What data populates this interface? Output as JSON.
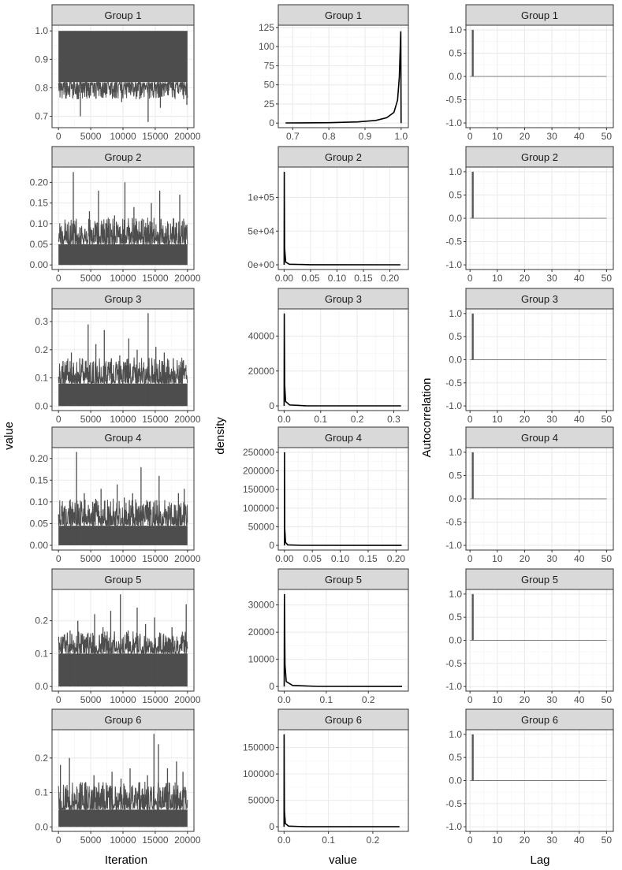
{
  "x_labels": {
    "trace": "Iteration",
    "density": "value",
    "acf": "Lag"
  },
  "y_labels": {
    "trace": "value",
    "density": "density",
    "acf": "Autocorrelation"
  },
  "groups": [
    "Group 1",
    "Group 2",
    "Group 3",
    "Group 4",
    "Group 5",
    "Group 6"
  ],
  "colors": {
    "strip": "#d9d9d9",
    "strip_border": "#333333",
    "panel_border": "#333333",
    "grid_major": "#ebebeb",
    "grid_minor": "#f4f4f4",
    "trace": "#4d4d4d",
    "density": "#000000",
    "acf": "#595959"
  },
  "chart_data": [
    {
      "type": "line",
      "panel": "trace",
      "title": "Group 1",
      "xlim": [
        -1000,
        21000
      ],
      "ylim": [
        0.66,
        1.02
      ],
      "xticks": [
        0,
        5000,
        10000,
        15000,
        20000
      ],
      "xtick_labels": [
        "0",
        "5000",
        "10000",
        "15000",
        "20000"
      ],
      "yticks": [
        0.7,
        0.8,
        0.9,
        1.0
      ],
      "ytick_labels": [
        "0.7",
        "0.8",
        "0.9",
        "1.0"
      ],
      "range": [
        0.82,
        1.0
      ],
      "n_iterations": 20000,
      "spikes": [
        [
          1200,
          0.78
        ],
        [
          2900,
          0.76
        ],
        [
          3400,
          0.7
        ],
        [
          4300,
          0.8
        ],
        [
          6100,
          0.79
        ],
        [
          8300,
          0.78
        ],
        [
          9800,
          0.75
        ],
        [
          12600,
          0.76
        ],
        [
          13900,
          0.68
        ],
        [
          15800,
          0.73
        ],
        [
          17100,
          0.79
        ],
        [
          19900,
          0.74
        ]
      ]
    },
    {
      "type": "line",
      "panel": "density",
      "title": "Group 1",
      "xlim": [
        0.66,
        1.02
      ],
      "ylim": [
        -6,
        128
      ],
      "xticks": [
        0.7,
        0.8,
        0.9,
        1.0
      ],
      "xtick_labels": [
        "0.7",
        "0.8",
        "0.9",
        "1.0"
      ],
      "yticks": [
        0,
        25,
        50,
        75,
        100,
        125
      ],
      "ytick_labels": [
        "0",
        "25",
        "50",
        "75",
        "100",
        "125"
      ],
      "x": [
        0.68,
        0.8,
        0.88,
        0.93,
        0.96,
        0.98,
        0.99,
        0.995,
        0.999,
        1.0
      ],
      "y": [
        0.2,
        0.5,
        1.5,
        3.5,
        7,
        14,
        30,
        60,
        120,
        0
      ]
    },
    {
      "type": "acf",
      "panel": "acf",
      "title": "Group 1",
      "xlim": [
        -1.5,
        52.5
      ],
      "ylim": [
        -1.1,
        1.1
      ],
      "xticks": [
        0,
        10,
        20,
        30,
        40,
        50
      ],
      "xtick_labels": [
        "0",
        "10",
        "20",
        "30",
        "40",
        "50"
      ],
      "yticks": [
        -1.0,
        -0.5,
        0.0,
        0.5,
        1.0
      ],
      "ytick_labels": [
        "-1.0",
        "-0.5",
        "0.0",
        "0.5",
        "1.0"
      ],
      "lag1": 1.0,
      "noise": 0.008
    },
    {
      "type": "line",
      "panel": "trace",
      "title": "Group 2",
      "xlim": [
        -1000,
        21000
      ],
      "ylim": [
        -0.011,
        0.237
      ],
      "xticks": [
        0,
        5000,
        10000,
        15000,
        20000
      ],
      "xtick_labels": [
        "0",
        "5000",
        "10000",
        "15000",
        "20000"
      ],
      "yticks": [
        0.0,
        0.05,
        0.1,
        0.15,
        0.2
      ],
      "ytick_labels": [
        "0.00",
        "0.05",
        "0.10",
        "0.15",
        "0.20"
      ],
      "range": [
        0.0,
        0.05
      ],
      "n_iterations": 20000,
      "spikes": [
        [
          500,
          0.07
        ],
        [
          1900,
          0.08
        ],
        [
          2300,
          0.225
        ],
        [
          3500,
          0.09
        ],
        [
          4800,
          0.13
        ],
        [
          6200,
          0.18
        ],
        [
          7400,
          0.1
        ],
        [
          8700,
          0.12
        ],
        [
          10300,
          0.2
        ],
        [
          11700,
          0.14
        ],
        [
          13200,
          0.11
        ],
        [
          14400,
          0.15
        ],
        [
          15700,
          0.18
        ],
        [
          17000,
          0.1
        ],
        [
          18800,
          0.17
        ],
        [
          19700,
          0.09
        ]
      ]
    },
    {
      "type": "line",
      "panel": "density",
      "title": "Group 2",
      "xlim": [
        -0.011,
        0.235
      ],
      "ylim": [
        -7000,
        145000
      ],
      "xticks": [
        0.0,
        0.05,
        0.1,
        0.15,
        0.2
      ],
      "xtick_labels": [
        "0.00",
        "0.05",
        "0.10",
        "0.15",
        "0.20"
      ],
      "yticks": [
        0,
        50000,
        100000
      ],
      "ytick_labels": [
        "0e+00",
        "5e+04",
        "1e+05"
      ],
      "x": [
        0.0,
        0.0004,
        0.001,
        0.003,
        0.01,
        0.05,
        0.22
      ],
      "y": [
        0,
        138000,
        25000,
        4000,
        800,
        100,
        0
      ]
    },
    {
      "type": "acf",
      "panel": "acf",
      "title": "Group 2",
      "xlim": [
        -1.5,
        52.5
      ],
      "ylim": [
        -1.1,
        1.1
      ],
      "xticks": [
        0,
        10,
        20,
        30,
        40,
        50
      ],
      "xtick_labels": [
        "0",
        "10",
        "20",
        "30",
        "40",
        "50"
      ],
      "yticks": [
        -1.0,
        -0.5,
        0.0,
        0.5,
        1.0
      ],
      "ytick_labels": [
        "-1.0",
        "-0.5",
        "0.0",
        "0.5",
        "1.0"
      ],
      "lag1": 1.0,
      "noise": 0.008
    },
    {
      "type": "line",
      "panel": "trace",
      "title": "Group 3",
      "xlim": [
        -1000,
        21000
      ],
      "ylim": [
        -0.016,
        0.345
      ],
      "xticks": [
        0,
        5000,
        10000,
        15000,
        20000
      ],
      "xtick_labels": [
        "0",
        "5000",
        "10000",
        "15000",
        "20000"
      ],
      "yticks": [
        0.0,
        0.1,
        0.2,
        0.3
      ],
      "ytick_labels": [
        "0.0",
        "0.1",
        "0.2",
        "0.3"
      ],
      "range": [
        0.0,
        0.08
      ],
      "n_iterations": 20000,
      "spikes": [
        [
          700,
          0.16
        ],
        [
          2000,
          0.19
        ],
        [
          3300,
          0.17
        ],
        [
          4600,
          0.29
        ],
        [
          5800,
          0.22
        ],
        [
          7100,
          0.27
        ],
        [
          8200,
          0.17
        ],
        [
          9500,
          0.18
        ],
        [
          10900,
          0.24
        ],
        [
          12200,
          0.2
        ],
        [
          13900,
          0.33
        ],
        [
          15100,
          0.21
        ],
        [
          16400,
          0.19
        ],
        [
          17800,
          0.17
        ],
        [
          19200,
          0.15
        ]
      ]
    },
    {
      "type": "line",
      "panel": "density",
      "title": "Group 3",
      "xlim": [
        -0.016,
        0.34
      ],
      "ylim": [
        -2700,
        55600
      ],
      "xticks": [
        0.0,
        0.1,
        0.2,
        0.3
      ],
      "xtick_labels": [
        "0.0",
        "0.1",
        "0.2",
        "0.3"
      ],
      "yticks": [
        0,
        20000,
        40000
      ],
      "ytick_labels": [
        "0",
        "20000",
        "40000"
      ],
      "x": [
        0.0,
        0.0005,
        0.0015,
        0.004,
        0.015,
        0.06,
        0.32
      ],
      "y": [
        0,
        53000,
        12000,
        2500,
        500,
        60,
        0
      ]
    },
    {
      "type": "acf",
      "panel": "acf",
      "title": "Group 3",
      "xlim": [
        -1.5,
        52.5
      ],
      "ylim": [
        -1.1,
        1.1
      ],
      "xticks": [
        0,
        10,
        20,
        30,
        40,
        50
      ],
      "xtick_labels": [
        "0",
        "10",
        "20",
        "30",
        "40",
        "50"
      ],
      "yticks": [
        -1.0,
        -0.5,
        0.0,
        0.5,
        1.0
      ],
      "ytick_labels": [
        "-1.0",
        "-0.5",
        "0.0",
        "0.5",
        "1.0"
      ],
      "lag1": 1.0,
      "noise": 0.008
    },
    {
      "type": "line",
      "panel": "trace",
      "title": "Group 4",
      "xlim": [
        -1000,
        21000
      ],
      "ylim": [
        -0.011,
        0.225
      ],
      "xticks": [
        0,
        5000,
        10000,
        15000,
        20000
      ],
      "xtick_labels": [
        "0",
        "5000",
        "10000",
        "15000",
        "20000"
      ],
      "yticks": [
        0.0,
        0.05,
        0.1,
        0.15,
        0.2
      ],
      "ytick_labels": [
        "0.00",
        "0.05",
        "0.10",
        "0.15",
        "0.20"
      ],
      "range": [
        0.0,
        0.045
      ],
      "n_iterations": 20000,
      "spikes": [
        [
          900,
          0.08
        ],
        [
          1900,
          0.09
        ],
        [
          2800,
          0.215
        ],
        [
          4000,
          0.12
        ],
        [
          5300,
          0.1
        ],
        [
          6600,
          0.13
        ],
        [
          7800,
          0.09
        ],
        [
          9100,
          0.14
        ],
        [
          10200,
          0.11
        ],
        [
          11500,
          0.12
        ],
        [
          12800,
          0.18
        ],
        [
          14100,
          0.1
        ],
        [
          15600,
          0.16
        ],
        [
          17000,
          0.09
        ],
        [
          18600,
          0.12
        ],
        [
          19500,
          0.13
        ]
      ]
    },
    {
      "type": "line",
      "panel": "density",
      "title": "Group 4",
      "xlim": [
        -0.011,
        0.222
      ],
      "ylim": [
        -12500,
        262500
      ],
      "xticks": [
        0.0,
        0.05,
        0.1,
        0.15,
        0.2
      ],
      "xtick_labels": [
        "0.00",
        "0.05",
        "0.10",
        "0.15",
        "0.20"
      ],
      "yticks": [
        0,
        50000,
        100000,
        150000,
        200000,
        250000
      ],
      "ytick_labels": [
        "0",
        "50000",
        "100000",
        "150000",
        "200000",
        "250000"
      ],
      "x": [
        0.0,
        0.0002,
        0.0006,
        0.002,
        0.006,
        0.03,
        0.21
      ],
      "y": [
        0,
        250000,
        45000,
        8000,
        1500,
        150,
        0
      ]
    },
    {
      "type": "acf",
      "panel": "acf",
      "title": "Group 4",
      "xlim": [
        -1.5,
        52.5
      ],
      "ylim": [
        -1.1,
        1.1
      ],
      "xticks": [
        0,
        10,
        20,
        30,
        40,
        50
      ],
      "xtick_labels": [
        "0",
        "10",
        "20",
        "30",
        "40",
        "50"
      ],
      "yticks": [
        -1.0,
        -0.5,
        0.0,
        0.5,
        1.0
      ],
      "ytick_labels": [
        "-1.0",
        "-0.5",
        "0.0",
        "0.5",
        "1.0"
      ],
      "lag1": 1.0,
      "noise": 0.008
    },
    {
      "type": "line",
      "panel": "trace",
      "title": "Group 5",
      "xlim": [
        -1000,
        21000
      ],
      "ylim": [
        -0.014,
        0.295
      ],
      "xticks": [
        0,
        5000,
        10000,
        15000,
        20000
      ],
      "xtick_labels": [
        "0",
        "5000",
        "10000",
        "15000",
        "20000"
      ],
      "yticks": [
        0.0,
        0.1,
        0.2
      ],
      "ytick_labels": [
        "0.0",
        "0.1",
        "0.2"
      ],
      "range": [
        0.0,
        0.1
      ],
      "n_iterations": 20000,
      "spikes": [
        [
          400,
          0.13
        ],
        [
          1800,
          0.17
        ],
        [
          3000,
          0.2
        ],
        [
          4300,
          0.15
        ],
        [
          5600,
          0.22
        ],
        [
          6900,
          0.18
        ],
        [
          8100,
          0.23
        ],
        [
          9600,
          0.28
        ],
        [
          10800,
          0.17
        ],
        [
          12200,
          0.24
        ],
        [
          13500,
          0.19
        ],
        [
          14900,
          0.21
        ],
        [
          16300,
          0.16
        ],
        [
          17600,
          0.18
        ],
        [
          19800,
          0.25
        ]
      ]
    },
    {
      "type": "line",
      "panel": "density",
      "title": "Group 5",
      "xlim": [
        -0.014,
        0.295
      ],
      "ylim": [
        -1700,
        35700
      ],
      "xticks": [
        0.0,
        0.1,
        0.2
      ],
      "xtick_labels": [
        "0.0",
        "0.1",
        "0.2"
      ],
      "yticks": [
        0,
        10000,
        20000,
        30000
      ],
      "ytick_labels": [
        "0",
        "10000",
        "20000",
        "30000"
      ],
      "x": [
        0.0,
        0.0006,
        0.002,
        0.005,
        0.02,
        0.08,
        0.28
      ],
      "y": [
        0,
        34000,
        8000,
        1800,
        400,
        50,
        0
      ]
    },
    {
      "type": "acf",
      "panel": "acf",
      "title": "Group 5",
      "xlim": [
        -1.5,
        52.5
      ],
      "ylim": [
        -1.1,
        1.1
      ],
      "xticks": [
        0,
        10,
        20,
        30,
        40,
        50
      ],
      "xtick_labels": [
        "0",
        "10",
        "20",
        "30",
        "40",
        "50"
      ],
      "yticks": [
        -1.0,
        -0.5,
        0.0,
        0.5,
        1.0
      ],
      "ytick_labels": [
        "-1.0",
        "-0.5",
        "0.0",
        "0.5",
        "1.0"
      ],
      "lag1": 1.0,
      "noise": 0.008
    },
    {
      "type": "line",
      "panel": "trace",
      "title": "Group 6",
      "xlim": [
        -1000,
        21000
      ],
      "ylim": [
        -0.013,
        0.282
      ],
      "xticks": [
        0,
        5000,
        10000,
        15000,
        20000
      ],
      "xtick_labels": [
        "0",
        "5000",
        "10000",
        "15000",
        "20000"
      ],
      "yticks": [
        0.0,
        0.1,
        0.2
      ],
      "ytick_labels": [
        "0.0",
        "0.1",
        "0.2"
      ],
      "range": [
        0.0,
        0.05
      ],
      "n_iterations": 20000,
      "spikes": [
        [
          300,
          0.18
        ],
        [
          1700,
          0.2
        ],
        [
          2900,
          0.11
        ],
        [
          4200,
          0.13
        ],
        [
          5500,
          0.15
        ],
        [
          6800,
          0.12
        ],
        [
          8300,
          0.16
        ],
        [
          9700,
          0.14
        ],
        [
          11100,
          0.17
        ],
        [
          12500,
          0.13
        ],
        [
          13800,
          0.15
        ],
        [
          14800,
          0.27
        ],
        [
          15500,
          0.24
        ],
        [
          16900,
          0.17
        ],
        [
          18300,
          0.19
        ],
        [
          19300,
          0.16
        ]
      ]
    },
    {
      "type": "line",
      "panel": "density",
      "title": "Group 6",
      "xlim": [
        -0.013,
        0.28
      ],
      "ylim": [
        -8750,
        183750
      ],
      "xticks": [
        0.0,
        0.1,
        0.2
      ],
      "xtick_labels": [
        "0.0",
        "0.1",
        "0.2"
      ],
      "yticks": [
        0,
        50000,
        100000,
        150000
      ],
      "ytick_labels": [
        "0",
        "50000",
        "100000",
        "150000"
      ],
      "x": [
        0.0,
        0.0002,
        0.0008,
        0.003,
        0.01,
        0.05,
        0.26
      ],
      "y": [
        0,
        175000,
        30000,
        6000,
        1200,
        120,
        0
      ]
    },
    {
      "type": "acf",
      "panel": "acf",
      "title": "Group 6",
      "xlim": [
        -1.5,
        52.5
      ],
      "ylim": [
        -1.1,
        1.1
      ],
      "xticks": [
        0,
        10,
        20,
        30,
        40,
        50
      ],
      "xtick_labels": [
        "0",
        "10",
        "20",
        "30",
        "40",
        "50"
      ],
      "yticks": [
        -1.0,
        -0.5,
        0.0,
        0.5,
        1.0
      ],
      "ytick_labels": [
        "-1.0",
        "-0.5",
        "0.0",
        "0.5",
        "1.0"
      ],
      "lag1": 1.0,
      "noise": 0.008
    }
  ]
}
